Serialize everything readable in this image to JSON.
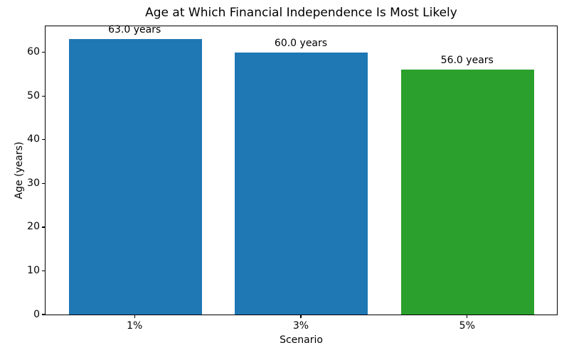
{
  "chart_data": {
    "type": "bar",
    "title": "Age at Which Financial Independence Is Most Likely",
    "xlabel": "Scenario",
    "ylabel": "Age (years)",
    "categories": [
      "1%",
      "3%",
      "5%"
    ],
    "values": [
      63.0,
      60.0,
      56.0
    ],
    "bar_labels": [
      "63.0 years",
      "60.0 years",
      "56.0 years"
    ],
    "bar_colors": [
      "#1f77b4",
      "#1f77b4",
      "#2ca02c"
    ],
    "yticks": [
      0,
      10,
      20,
      30,
      40,
      50,
      60
    ],
    "ylim": [
      0,
      66.15
    ],
    "xlim": [
      -0.54,
      2.54
    ],
    "bar_width": 0.8,
    "grid": false,
    "legend": false,
    "background_color": "#ffffff",
    "spine_color": "#000000",
    "tick_color": "#000000",
    "text_color": "#000000"
  }
}
